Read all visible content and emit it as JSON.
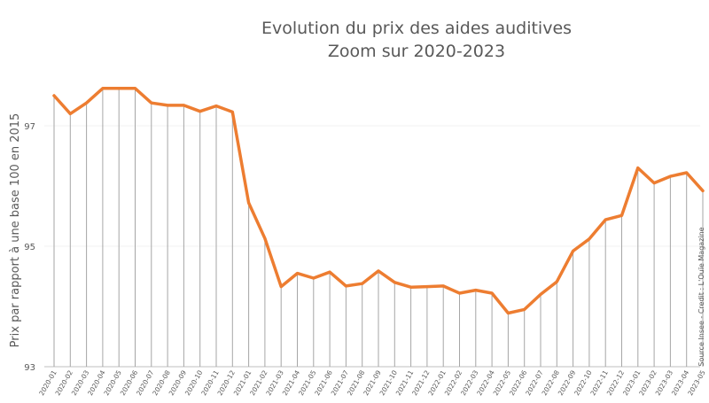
{
  "chart_data": {
    "type": "line",
    "title": "Evolution du prix des aides auditives",
    "subtitle": "Zoom sur 2020-2023",
    "xlabel": "",
    "ylabel": "Prix par rapport à une base 100 en 2015",
    "source_note": "Source Insee - Credit : L'Ouïe Magazine",
    "ylim": [
      93,
      98.2
    ],
    "yticks": [
      93,
      95,
      97
    ],
    "grid": "horizontal",
    "line_color": "#ED7D31",
    "drop_line_color": "#A6A6A6",
    "categories": [
      "2020-01",
      "2020-02",
      "2020-03",
      "2020-04",
      "2020-05",
      "2020-06",
      "2020-07",
      "2020-08",
      "2020-09",
      "2020-10",
      "2020-11",
      "2020-12",
      "2021-01",
      "2021-02",
      "2021-03",
      "2021-04",
      "2021-05",
      "2021-06",
      "2021-07",
      "2021-08",
      "2021-09",
      "2021-10",
      "2021-11",
      "2021-12",
      "2022-01",
      "2022-02",
      "2022-03",
      "2022-04",
      "2022-05",
      "2022-06",
      "2022-07",
      "2022-08",
      "2022-09",
      "2022-10",
      "2022-11",
      "2022-12",
      "2023-01",
      "2023-02",
      "2023-03",
      "2023-04",
      "2023-05"
    ],
    "values": [
      97.5,
      97.2,
      97.38,
      97.62,
      97.62,
      97.62,
      97.38,
      97.34,
      97.34,
      97.24,
      97.33,
      97.23,
      95.72,
      95.13,
      94.33,
      94.55,
      94.47,
      94.57,
      94.34,
      94.38,
      94.59,
      94.4,
      94.32,
      94.33,
      94.34,
      94.22,
      94.27,
      94.22,
      93.89,
      93.95,
      94.2,
      94.41,
      94.92,
      95.12,
      95.44,
      95.51,
      96.3,
      96.05,
      96.16,
      96.22,
      95.92
    ]
  }
}
